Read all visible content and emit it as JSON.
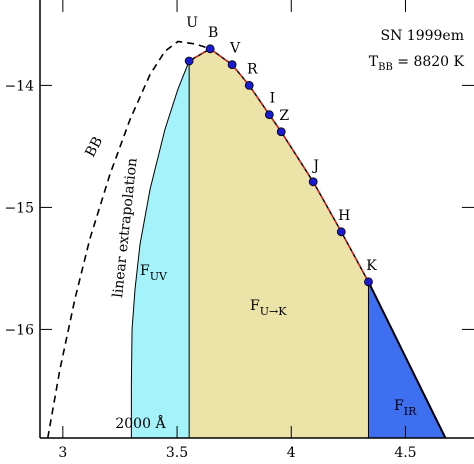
{
  "chart_data": {
    "type": "sed",
    "xlim": [
      2.9,
      4.8
    ],
    "ylim": [
      -16.89,
      -13.3
    ],
    "xticks": [
      3,
      3.5,
      4,
      4.5
    ],
    "yticks": [
      {
        "value": -14,
        "label": "−14"
      },
      {
        "value": -15,
        "label": "−15"
      },
      {
        "value": -16,
        "label": "−16"
      }
    ],
    "title": "SN 1999em",
    "subtitle": {
      "main": "T",
      "sub": "BB",
      "rest": " = 8820 K"
    },
    "points": {
      "labels": [
        "U",
        "B",
        "V",
        "R",
        "I",
        "Z",
        "J",
        "H",
        "K"
      ],
      "x": [
        3.553,
        3.645,
        3.741,
        3.816,
        3.904,
        3.956,
        4.096,
        4.219,
        4.338
      ],
      "values": [
        -13.8,
        -13.7,
        -13.83,
        -14.0,
        -14.24,
        -14.38,
        -14.79,
        -15.2,
        -15.61
      ]
    },
    "bb": {
      "label": "BB",
      "x": [
        2.934,
        2.987,
        3.053,
        3.118,
        3.206,
        3.294,
        3.382,
        3.447,
        3.504,
        3.579,
        3.645
      ],
      "values": [
        -16.89,
        -16.33,
        -15.75,
        -15.26,
        -14.73,
        -14.28,
        -13.91,
        -13.72,
        -13.64,
        -13.66,
        -13.7
      ]
    },
    "uv_curve": {
      "label": "linear extrapolation",
      "x": [
        3.3,
        3.303,
        3.316,
        3.338,
        3.382,
        3.447,
        3.504,
        3.553
      ],
      "values": [
        -16.45,
        -16.0,
        -15.67,
        -15.3,
        -14.85,
        -14.36,
        -14.03,
        -13.8
      ]
    },
    "ir_edge": {
      "x": [
        4.338,
        4.675
      ],
      "values": [
        -15.61,
        -16.89
      ]
    },
    "cutoff": {
      "label": "2000 Å",
      "x": 3.3
    },
    "regions": [
      {
        "main": "F",
        "sub": "UV",
        "color": "#a4f3fb"
      },
      {
        "main": "F",
        "sub": "U→K",
        "color": "#ece3a9"
      },
      {
        "main": "F",
        "sub": "IR",
        "color": "#3d6ff0"
      }
    ]
  }
}
